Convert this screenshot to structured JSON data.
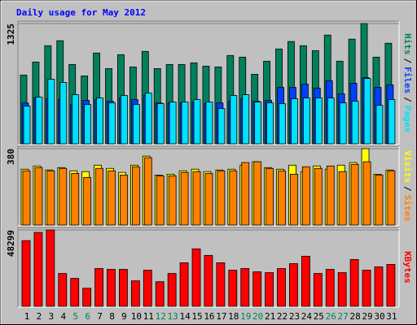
{
  "chart_data": [
    {
      "type": "bar",
      "title": "Daily usage for May 2012",
      "legend_separator": "/",
      "ylim": [
        0,
        1325
      ],
      "yticks": [
        1325
      ],
      "series": [
        {
          "name": "Pages",
          "color": "#00e0ff",
          "values": [
            415,
            514,
            712,
            676,
            541,
            433,
            505,
            451,
            532,
            433,
            559,
            442,
            460,
            460,
            487,
            460,
            388,
            532,
            541,
            460,
            451,
            442,
            496,
            505,
            505,
            505,
            451,
            469,
            721,
            424,
            487
          ]
        },
        {
          "name": "Files",
          "color": "#0040ff",
          "values": [
            450,
            505,
            496,
            487,
            433,
            478,
            487,
            469,
            505,
            487,
            532,
            450,
            450,
            450,
            460,
            442,
            450,
            469,
            496,
            469,
            478,
            622,
            622,
            658,
            613,
            694,
            550,
            667,
            730,
            622,
            649
          ]
        },
        {
          "name": "Hits",
          "color": "#00805c",
          "values": [
            757,
            901,
            1081,
            1136,
            874,
            748,
            1000,
            829,
            982,
            847,
            1018,
            829,
            874,
            874,
            892,
            856,
            847,
            973,
            955,
            766,
            910,
            1045,
            1127,
            1081,
            1027,
            1198,
            910,
            1153,
            1325,
            955,
            1108
          ]
        }
      ]
    },
    {
      "type": "bar",
      "legend_separator": "/",
      "ylim": [
        0,
        380
      ],
      "yticks": [
        380
      ],
      "series": [
        {
          "name": "Sites",
          "color": "#ff8000",
          "values": [
            270,
            286,
            270,
            282,
            257,
            237,
            282,
            270,
            249,
            290,
            335,
            245,
            245,
            262,
            266,
            257,
            270,
            270,
            311,
            315,
            282,
            270,
            253,
            290,
            282,
            294,
            266,
            302,
            315,
            249,
            270
          ]
        },
        {
          "name": "Visits",
          "color": "#ffff00",
          "values": [
            278,
            294,
            274,
            286,
            270,
            266,
            298,
            282,
            262,
            298,
            343,
            249,
            253,
            270,
            278,
            266,
            274,
            278,
            298,
            315,
            286,
            278,
            298,
            266,
            294,
            278,
            298,
            311,
            380,
            253,
            274
          ]
        }
      ]
    },
    {
      "type": "bar",
      "ylim": [
        0,
        48299
      ],
      "yticks": [
        48299
      ],
      "categories": [
        "1",
        "2",
        "3",
        "4",
        "5",
        "6",
        "7",
        "8",
        "9",
        "10",
        "11",
        "12",
        "13",
        "14",
        "15",
        "16",
        "17",
        "18",
        "19",
        "20",
        "21",
        "22",
        "23",
        "24",
        "25",
        "26",
        "27",
        "28",
        "29",
        "30",
        "31"
      ],
      "category_colors": [
        "#000000",
        "#000000",
        "#000000",
        "#000000",
        "#00805c",
        "#00805c",
        "#000000",
        "#000000",
        "#000000",
        "#000000",
        "#000000",
        "#00805c",
        "#00805c",
        "#000000",
        "#000000",
        "#000000",
        "#000000",
        "#000000",
        "#00805c",
        "#00805c",
        "#000000",
        "#000000",
        "#000000",
        "#000000",
        "#000000",
        "#00805c",
        "#00805c",
        "#000000",
        "#000000",
        "#000000",
        "#000000"
      ],
      "series": [
        {
          "name": "KBytes",
          "color": "#ff0000",
          "values": [
            41544,
            46737,
            48299,
            20772,
            17656,
            11425,
            23888,
            23369,
            23369,
            16098,
            22849,
            15579,
            20772,
            27523,
            36351,
            32197,
            27523,
            22849,
            23888,
            21810,
            21291,
            23888,
            27003,
            31677,
            20772,
            23369,
            21291,
            29600,
            22849,
            24926,
            26484
          ]
        }
      ]
    }
  ]
}
